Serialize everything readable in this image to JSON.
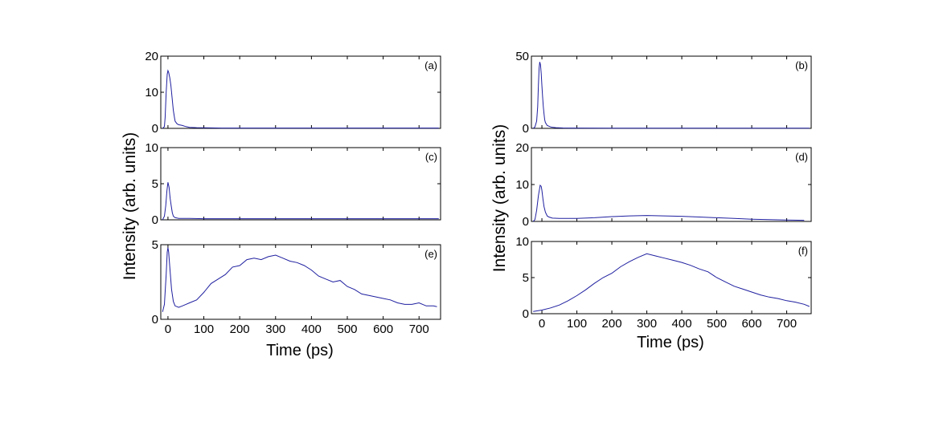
{
  "chart_data": [
    {
      "type": "line",
      "panel_label": "(a)",
      "xlim": [
        -20,
        760
      ],
      "ylim": [
        0,
        20
      ],
      "yticks": [
        0,
        10,
        20
      ],
      "xticks": [],
      "series": [
        {
          "name": "intensity",
          "color": "#1f1fa0",
          "x": [
            -15,
            -10,
            -8,
            -5,
            -2,
            0,
            2,
            5,
            8,
            10,
            13,
            15,
            18,
            20,
            25,
            30,
            35,
            40,
            50,
            60,
            80,
            100,
            150,
            200,
            300,
            400,
            500,
            600,
            700,
            755
          ],
          "y": [
            0,
            0.5,
            3,
            10,
            15,
            16,
            15.5,
            14,
            12,
            10,
            7,
            5,
            3,
            2,
            1.3,
            1,
            0.9,
            0.8,
            0.5,
            0.3,
            0.2,
            0.15,
            0.1,
            0.1,
            0.1,
            0.1,
            0.1,
            0.1,
            0.1,
            0.1
          ]
        }
      ]
    },
    {
      "type": "line",
      "panel_label": "(b)",
      "xlim": [
        -30,
        770
      ],
      "ylim": [
        0,
        50
      ],
      "yticks": [
        0,
        50
      ],
      "xticks": [],
      "series": [
        {
          "name": "intensity",
          "color": "#1f1fa0",
          "x": [
            -25,
            -20,
            -15,
            -12,
            -10,
            -8,
            -6,
            -4,
            -2,
            0,
            2,
            4,
            6,
            8,
            10,
            15,
            20,
            25,
            30,
            40,
            60,
            80,
            100,
            200,
            400,
            600,
            765
          ],
          "y": [
            0,
            1,
            5,
            15,
            30,
            42,
            46,
            44,
            38,
            30,
            22,
            15,
            10,
            6,
            4,
            2,
            1.5,
            1,
            0.8,
            0.5,
            0.3,
            0.2,
            0.2,
            0.1,
            0.1,
            0.1,
            0.1
          ]
        }
      ]
    },
    {
      "type": "line",
      "panel_label": "(c)",
      "xlim": [
        -20,
        760
      ],
      "ylim": [
        0,
        10
      ],
      "yticks": [
        0,
        5,
        10
      ],
      "xticks": [],
      "series": [
        {
          "name": "intensity",
          "color": "#1f1fa0",
          "x": [
            -15,
            -10,
            -6,
            -3,
            0,
            3,
            6,
            9,
            12,
            15,
            20,
            25,
            30,
            40,
            60,
            100,
            200,
            300,
            400,
            500,
            600,
            700,
            755
          ],
          "y": [
            0,
            0.5,
            2,
            4,
            5.2,
            4.5,
            3,
            2,
            1,
            0.5,
            0.3,
            0.25,
            0.2,
            0.2,
            0.2,
            0.15,
            0.15,
            0.15,
            0.15,
            0.15,
            0.15,
            0.15,
            0.15
          ]
        }
      ]
    },
    {
      "type": "line",
      "panel_label": "(d)",
      "xlim": [
        -30,
        770
      ],
      "ylim": [
        0,
        20
      ],
      "yticks": [
        0,
        10,
        20
      ],
      "xticks": [],
      "series": [
        {
          "name": "intensity",
          "color": "#1f1fa0",
          "x": [
            -25,
            -20,
            -15,
            -10,
            -5,
            -2,
            0,
            3,
            6,
            10,
            15,
            20,
            30,
            50,
            100,
            150,
            200,
            250,
            300,
            350,
            400,
            450,
            500,
            550,
            600,
            650,
            700,
            750
          ],
          "y": [
            0,
            0.5,
            3,
            7,
            9.8,
            9.5,
            8.5,
            6,
            4,
            2.5,
            1.5,
            1.2,
            0.9,
            0.8,
            0.8,
            1,
            1.3,
            1.5,
            1.6,
            1.5,
            1.4,
            1.2,
            1,
            0.8,
            0.6,
            0.5,
            0.4,
            0.3
          ]
        }
      ]
    },
    {
      "type": "line",
      "panel_label": "(e)",
      "xlim": [
        -20,
        760
      ],
      "ylim": [
        0,
        5
      ],
      "yticks": [
        0,
        5
      ],
      "xticks": [
        0,
        100,
        200,
        300,
        400,
        500,
        600,
        700
      ],
      "xlabel": "Time (ps)",
      "series": [
        {
          "name": "intensity",
          "color": "#1f1fa0",
          "x": [
            -15,
            -10,
            -5,
            -2,
            0,
            2,
            5,
            10,
            15,
            20,
            30,
            40,
            50,
            60,
            80,
            100,
            120,
            140,
            160,
            180,
            200,
            220,
            240,
            260,
            280,
            300,
            320,
            340,
            360,
            380,
            400,
            420,
            440,
            460,
            480,
            500,
            520,
            540,
            560,
            580,
            600,
            620,
            640,
            660,
            680,
            700,
            720,
            740,
            750
          ],
          "y": [
            0.5,
            1,
            3,
            4.5,
            4.8,
            4.5,
            3.5,
            2,
            1.2,
            0.9,
            0.8,
            0.9,
            1,
            1.1,
            1.3,
            1.8,
            2.4,
            2.7,
            3,
            3.5,
            3.6,
            4,
            4.1,
            4,
            4.2,
            4.3,
            4.1,
            3.9,
            3.8,
            3.6,
            3.3,
            2.9,
            2.7,
            2.5,
            2.6,
            2.2,
            2,
            1.7,
            1.6,
            1.5,
            1.4,
            1.3,
            1.1,
            1,
            1,
            1.1,
            0.9,
            0.9,
            0.85
          ]
        }
      ]
    },
    {
      "type": "line",
      "panel_label": "(f)",
      "xlim": [
        -30,
        770
      ],
      "ylim": [
        0,
        10
      ],
      "yticks": [
        0,
        5,
        10
      ],
      "xticks": [
        0,
        100,
        200,
        300,
        400,
        500,
        600,
        700
      ],
      "xlabel": "Time (ps)",
      "series": [
        {
          "name": "intensity",
          "color": "#1f1fa0",
          "x": [
            -25,
            0,
            25,
            50,
            75,
            100,
            125,
            150,
            175,
            200,
            225,
            250,
            275,
            300,
            325,
            350,
            375,
            400,
            425,
            450,
            475,
            500,
            525,
            550,
            575,
            600,
            625,
            650,
            675,
            700,
            725,
            750,
            765
          ],
          "y": [
            0.3,
            0.5,
            0.8,
            1.2,
            1.8,
            2.5,
            3.3,
            4.2,
            5,
            5.6,
            6.5,
            7.2,
            7.8,
            8.3,
            8,
            7.7,
            7.4,
            7.1,
            6.7,
            6.2,
            5.8,
            5,
            4.4,
            3.8,
            3.4,
            3,
            2.6,
            2.3,
            2.1,
            1.8,
            1.6,
            1.3,
            1
          ]
        }
      ]
    }
  ],
  "shared_ylabel": "Intensity (arb. units)"
}
